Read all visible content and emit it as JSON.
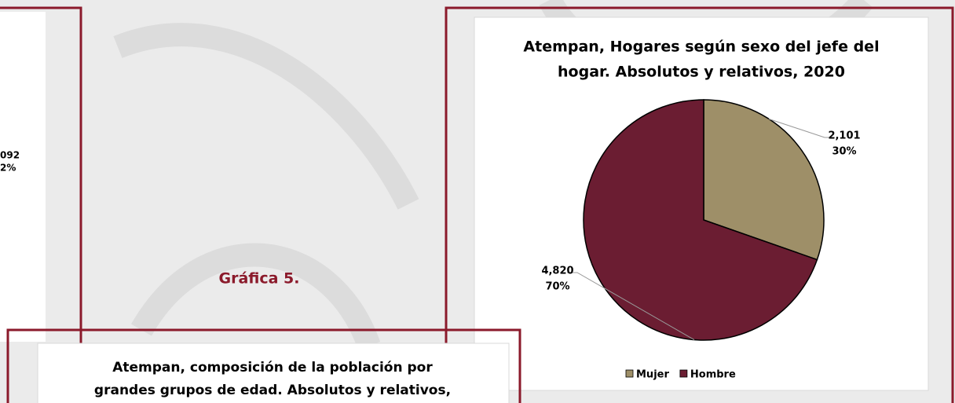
{
  "left_fragment": {
    "lines": [
      "092",
      "2%"
    ]
  },
  "caption": "Gráfica 5.",
  "bottom_chart": {
    "title_lines": [
      "Atempan, composición de la población por",
      "grandes grupos de edad. Absolutos y relativos,"
    ]
  },
  "chart_data": {
    "type": "pie",
    "title_lines": [
      "Atempan, Hogares según sexo del jefe del",
      "hogar. Absolutos y relativos, 2020"
    ],
    "categories": [
      "Mujer",
      "Hombre"
    ],
    "values": [
      2101,
      4820
    ],
    "value_labels": [
      "2,101",
      "4,820"
    ],
    "share_labels": [
      "30%",
      "70%"
    ],
    "colors": [
      "#9e8f68",
      "#6b1d32"
    ],
    "legend": "bottom"
  }
}
